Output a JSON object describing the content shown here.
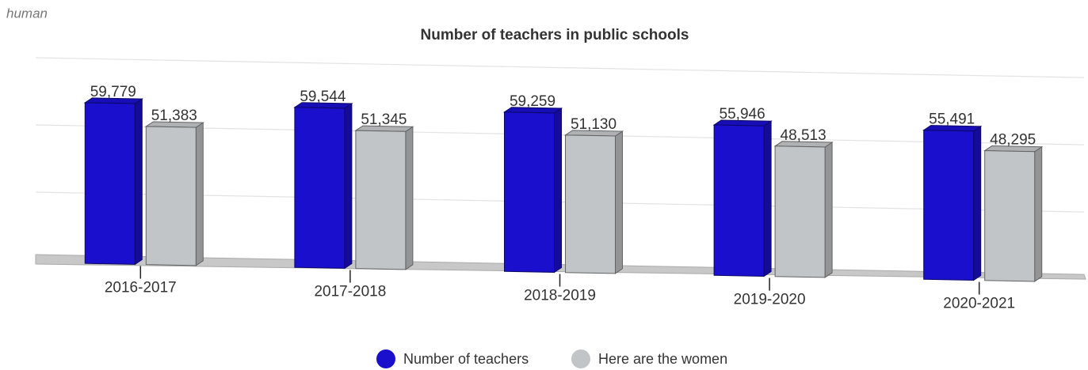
{
  "source": "human",
  "chart_data": {
    "type": "bar3d",
    "title": "Number of teachers in public schools",
    "categories": [
      "2016-2017",
      "2017-2018",
      "2018-2019",
      "2019-2020",
      "2020-2021"
    ],
    "series": [
      {
        "name": "Number of teachers",
        "color": "#1a0fcc",
        "values": [
          59779,
          59544,
          59259,
          55946,
          55491
        ],
        "value_labels": [
          "59,779",
          "59,544",
          "59,259",
          "55,946",
          "55,491"
        ]
      },
      {
        "name": "Here are the women",
        "color": "#c2c5c7",
        "values": [
          51383,
          51345,
          51130,
          48513,
          48295
        ],
        "value_labels": [
          "51,383",
          "51,345",
          "51,130",
          "48,513",
          "48,295"
        ]
      }
    ],
    "ylim": [
      0,
      75000
    ],
    "yticks": [
      0,
      25000,
      50000,
      75000
    ],
    "grid": true,
    "legend": "bottom"
  }
}
